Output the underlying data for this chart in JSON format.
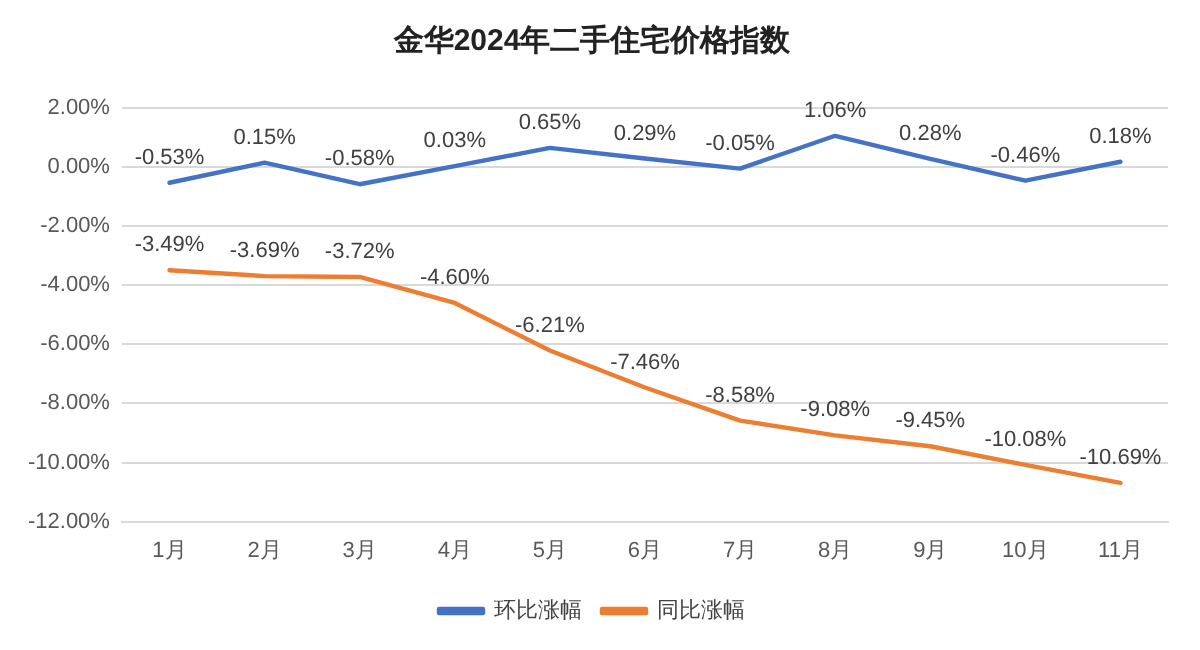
{
  "chart_data": {
    "type": "line",
    "title": "金华2024年二手住宅价格指数",
    "categories": [
      "1月",
      "2月",
      "3月",
      "4月",
      "5月",
      "6月",
      "7月",
      "8月",
      "9月",
      "10月",
      "11月"
    ],
    "series": [
      {
        "name": "环比涨幅",
        "color": "#4472c4",
        "values": [
          -0.53,
          0.15,
          -0.58,
          0.03,
          0.65,
          0.29,
          -0.05,
          1.06,
          0.28,
          -0.46,
          0.18
        ],
        "value_labels": [
          "-0.53%",
          "0.15%",
          "-0.58%",
          "0.03%",
          "0.65%",
          "0.29%",
          "-0.05%",
          "1.06%",
          "0.28%",
          "-0.46%",
          "0.18%"
        ]
      },
      {
        "name": "同比涨幅",
        "color": "#ed7d31",
        "values": [
          -3.49,
          -3.69,
          -3.72,
          -4.6,
          -6.21,
          -7.46,
          -8.58,
          -9.08,
          -9.45,
          -10.08,
          -10.69
        ],
        "value_labels": [
          "-3.49%",
          "-3.69%",
          "-3.72%",
          "-4.60%",
          "-6.21%",
          "-7.46%",
          "-8.58%",
          "-9.08%",
          "-9.45%",
          "-10.08%",
          "-10.69%"
        ]
      }
    ],
    "ylim": [
      -12,
      2
    ],
    "yticks": [
      {
        "value": 2,
        "label": "2.00%"
      },
      {
        "value": 0,
        "label": "0.00%"
      },
      {
        "value": -2,
        "label": "-2.00%"
      },
      {
        "value": -4,
        "label": "-4.00%"
      },
      {
        "value": -6,
        "label": "-6.00%"
      },
      {
        "value": -8,
        "label": "-8.00%"
      },
      {
        "value": -10,
        "label": "-10.00%"
      },
      {
        "value": -12,
        "label": "-12.00%"
      }
    ],
    "grid": "y",
    "legend": "bottom",
    "marker": "none",
    "line_style": "solid"
  }
}
